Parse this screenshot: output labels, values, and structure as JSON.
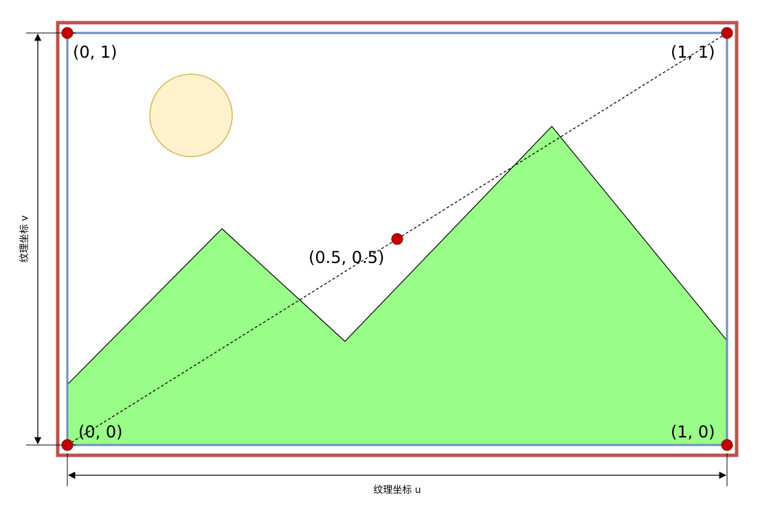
{
  "colors": {
    "outer_frame": "#b85450",
    "texture_frame": "#6c8ebf",
    "sun_fill": "#fff2cc",
    "sun_stroke": "#d6b656",
    "mountain_fill": "#99ff88",
    "point": "#c00000"
  },
  "points": [
    {
      "label": "(0, 1)"
    },
    {
      "label": "(1, 1)"
    },
    {
      "label": "(0.5, 0.5)"
    },
    {
      "label": "(0, 0)"
    },
    {
      "label": "(1, 0)"
    }
  ],
  "axes": {
    "u_label": "纹理坐标 u",
    "v_label": "纹理坐标 v"
  }
}
